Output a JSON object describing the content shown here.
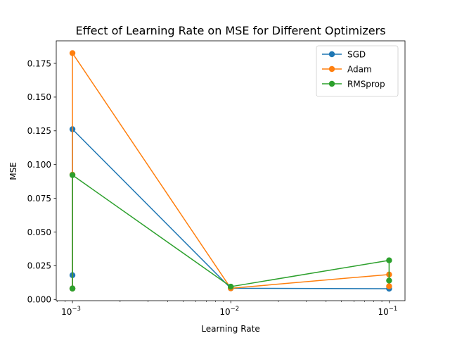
{
  "chart_data": {
    "type": "line",
    "title": "Effect of Learning Rate on MSE for Different Optimizers",
    "xlabel": "Learning Rate",
    "ylabel": "MSE",
    "xscale": "log",
    "xlim": [
      0.00079,
      0.126
    ],
    "ylim": [
      -0.0009,
      0.1917
    ],
    "xticks": [
      {
        "value": 0.001,
        "base": "10",
        "exp": "−3"
      },
      {
        "value": 0.01,
        "base": "10",
        "exp": "−2"
      },
      {
        "value": 0.1,
        "base": "10",
        "exp": "−1"
      }
    ],
    "yticks": [
      {
        "value": 0.0,
        "label": "0.000"
      },
      {
        "value": 0.025,
        "label": "0.025"
      },
      {
        "value": 0.05,
        "label": "0.050"
      },
      {
        "value": 0.075,
        "label": "0.075"
      },
      {
        "value": 0.1,
        "label": "0.100"
      },
      {
        "value": 0.125,
        "label": "0.125"
      },
      {
        "value": 0.15,
        "label": "0.150"
      },
      {
        "value": 0.175,
        "label": "0.175"
      }
    ],
    "grid": false,
    "legend_position": "top-right",
    "series": [
      {
        "name": "SGD",
        "color": "#1f77b4",
        "points": [
          {
            "x": 0.001,
            "y": 0.0081
          },
          {
            "x": 0.001,
            "y": 0.018
          },
          {
            "x": 0.001,
            "y": 0.1262
          },
          {
            "x": 0.01,
            "y": 0.0083
          },
          {
            "x": 0.1,
            "y": 0.008
          }
        ]
      },
      {
        "name": "Adam",
        "color": "#ff7f0e",
        "points": [
          {
            "x": 0.001,
            "y": 0.0081
          },
          {
            "x": 0.001,
            "y": 0.0925
          },
          {
            "x": 0.001,
            "y": 0.1826
          },
          {
            "x": 0.01,
            "y": 0.0083
          },
          {
            "x": 0.1,
            "y": 0.0185
          },
          {
            "x": 0.1,
            "y": 0.0098
          }
        ]
      },
      {
        "name": "RMSprop",
        "color": "#2ca02c",
        "points": [
          {
            "x": 0.001,
            "y": 0.0081
          },
          {
            "x": 0.001,
            "y": 0.0922
          },
          {
            "x": 0.01,
            "y": 0.0095
          },
          {
            "x": 0.1,
            "y": 0.029
          },
          {
            "x": 0.1,
            "y": 0.014
          }
        ]
      }
    ]
  }
}
